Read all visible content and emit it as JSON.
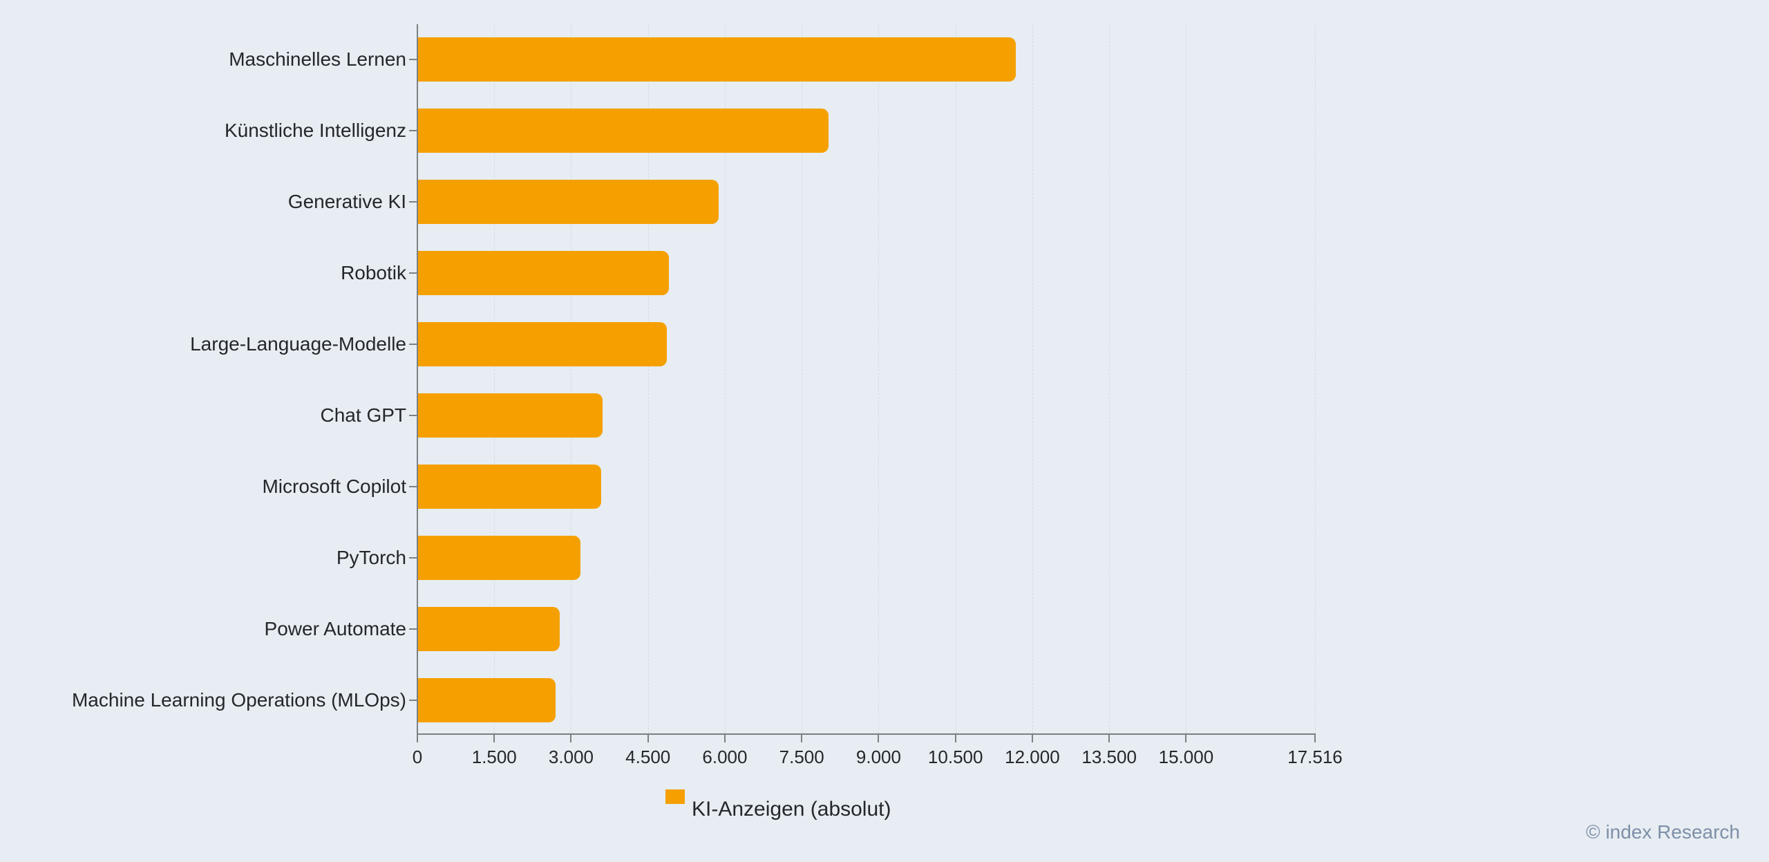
{
  "chart_data": {
    "type": "bar",
    "orientation": "horizontal",
    "title": "",
    "categories": [
      "Maschinelles Lernen",
      "Künstliche Intelligenz",
      "Generative KI",
      "Robotik",
      "Large-Language-Modelle",
      "Chat GPT",
      "Microsoft Copilot",
      "PyTorch",
      "Power Automate",
      "Machine Learning Operations (MLOps)"
    ],
    "series": [
      {
        "name": "KI-Anzeigen (absolut)",
        "values": [
          11670,
          8010,
          5870,
          4890,
          4850,
          3600,
          3580,
          3170,
          2760,
          2680
        ]
      }
    ],
    "value_axis": {
      "min": 0,
      "max": 17516,
      "ticks": [
        {
          "value": 0,
          "label": "0"
        },
        {
          "value": 1500,
          "label": "1.500"
        },
        {
          "value": 3000,
          "label": "3.000"
        },
        {
          "value": 4500,
          "label": "4.500"
        },
        {
          "value": 6000,
          "label": "6.000"
        },
        {
          "value": 7500,
          "label": "7.500"
        },
        {
          "value": 9000,
          "label": "9.000"
        },
        {
          "value": 10500,
          "label": "10.500"
        },
        {
          "value": 12000,
          "label": "12.000"
        },
        {
          "value": 13500,
          "label": "13.500"
        },
        {
          "value": 15000,
          "label": "15.000"
        },
        {
          "value": 17516,
          "label": "17.516"
        }
      ]
    },
    "grid": "vertical-dashed",
    "legend_position": "bottom",
    "bar_color": "#F5A000"
  },
  "legend": {
    "label": "KI-Anzeigen (absolut)",
    "swatch_color": "#F5A000"
  },
  "footer": {
    "copyright": "© index Research"
  },
  "colors": {
    "background": "#E7EDF2",
    "bar": "#F5A000",
    "axis": "#7B8085",
    "text": "#24272C",
    "grid": "#D4DCE5",
    "copyright": "#7E8FA9"
  }
}
